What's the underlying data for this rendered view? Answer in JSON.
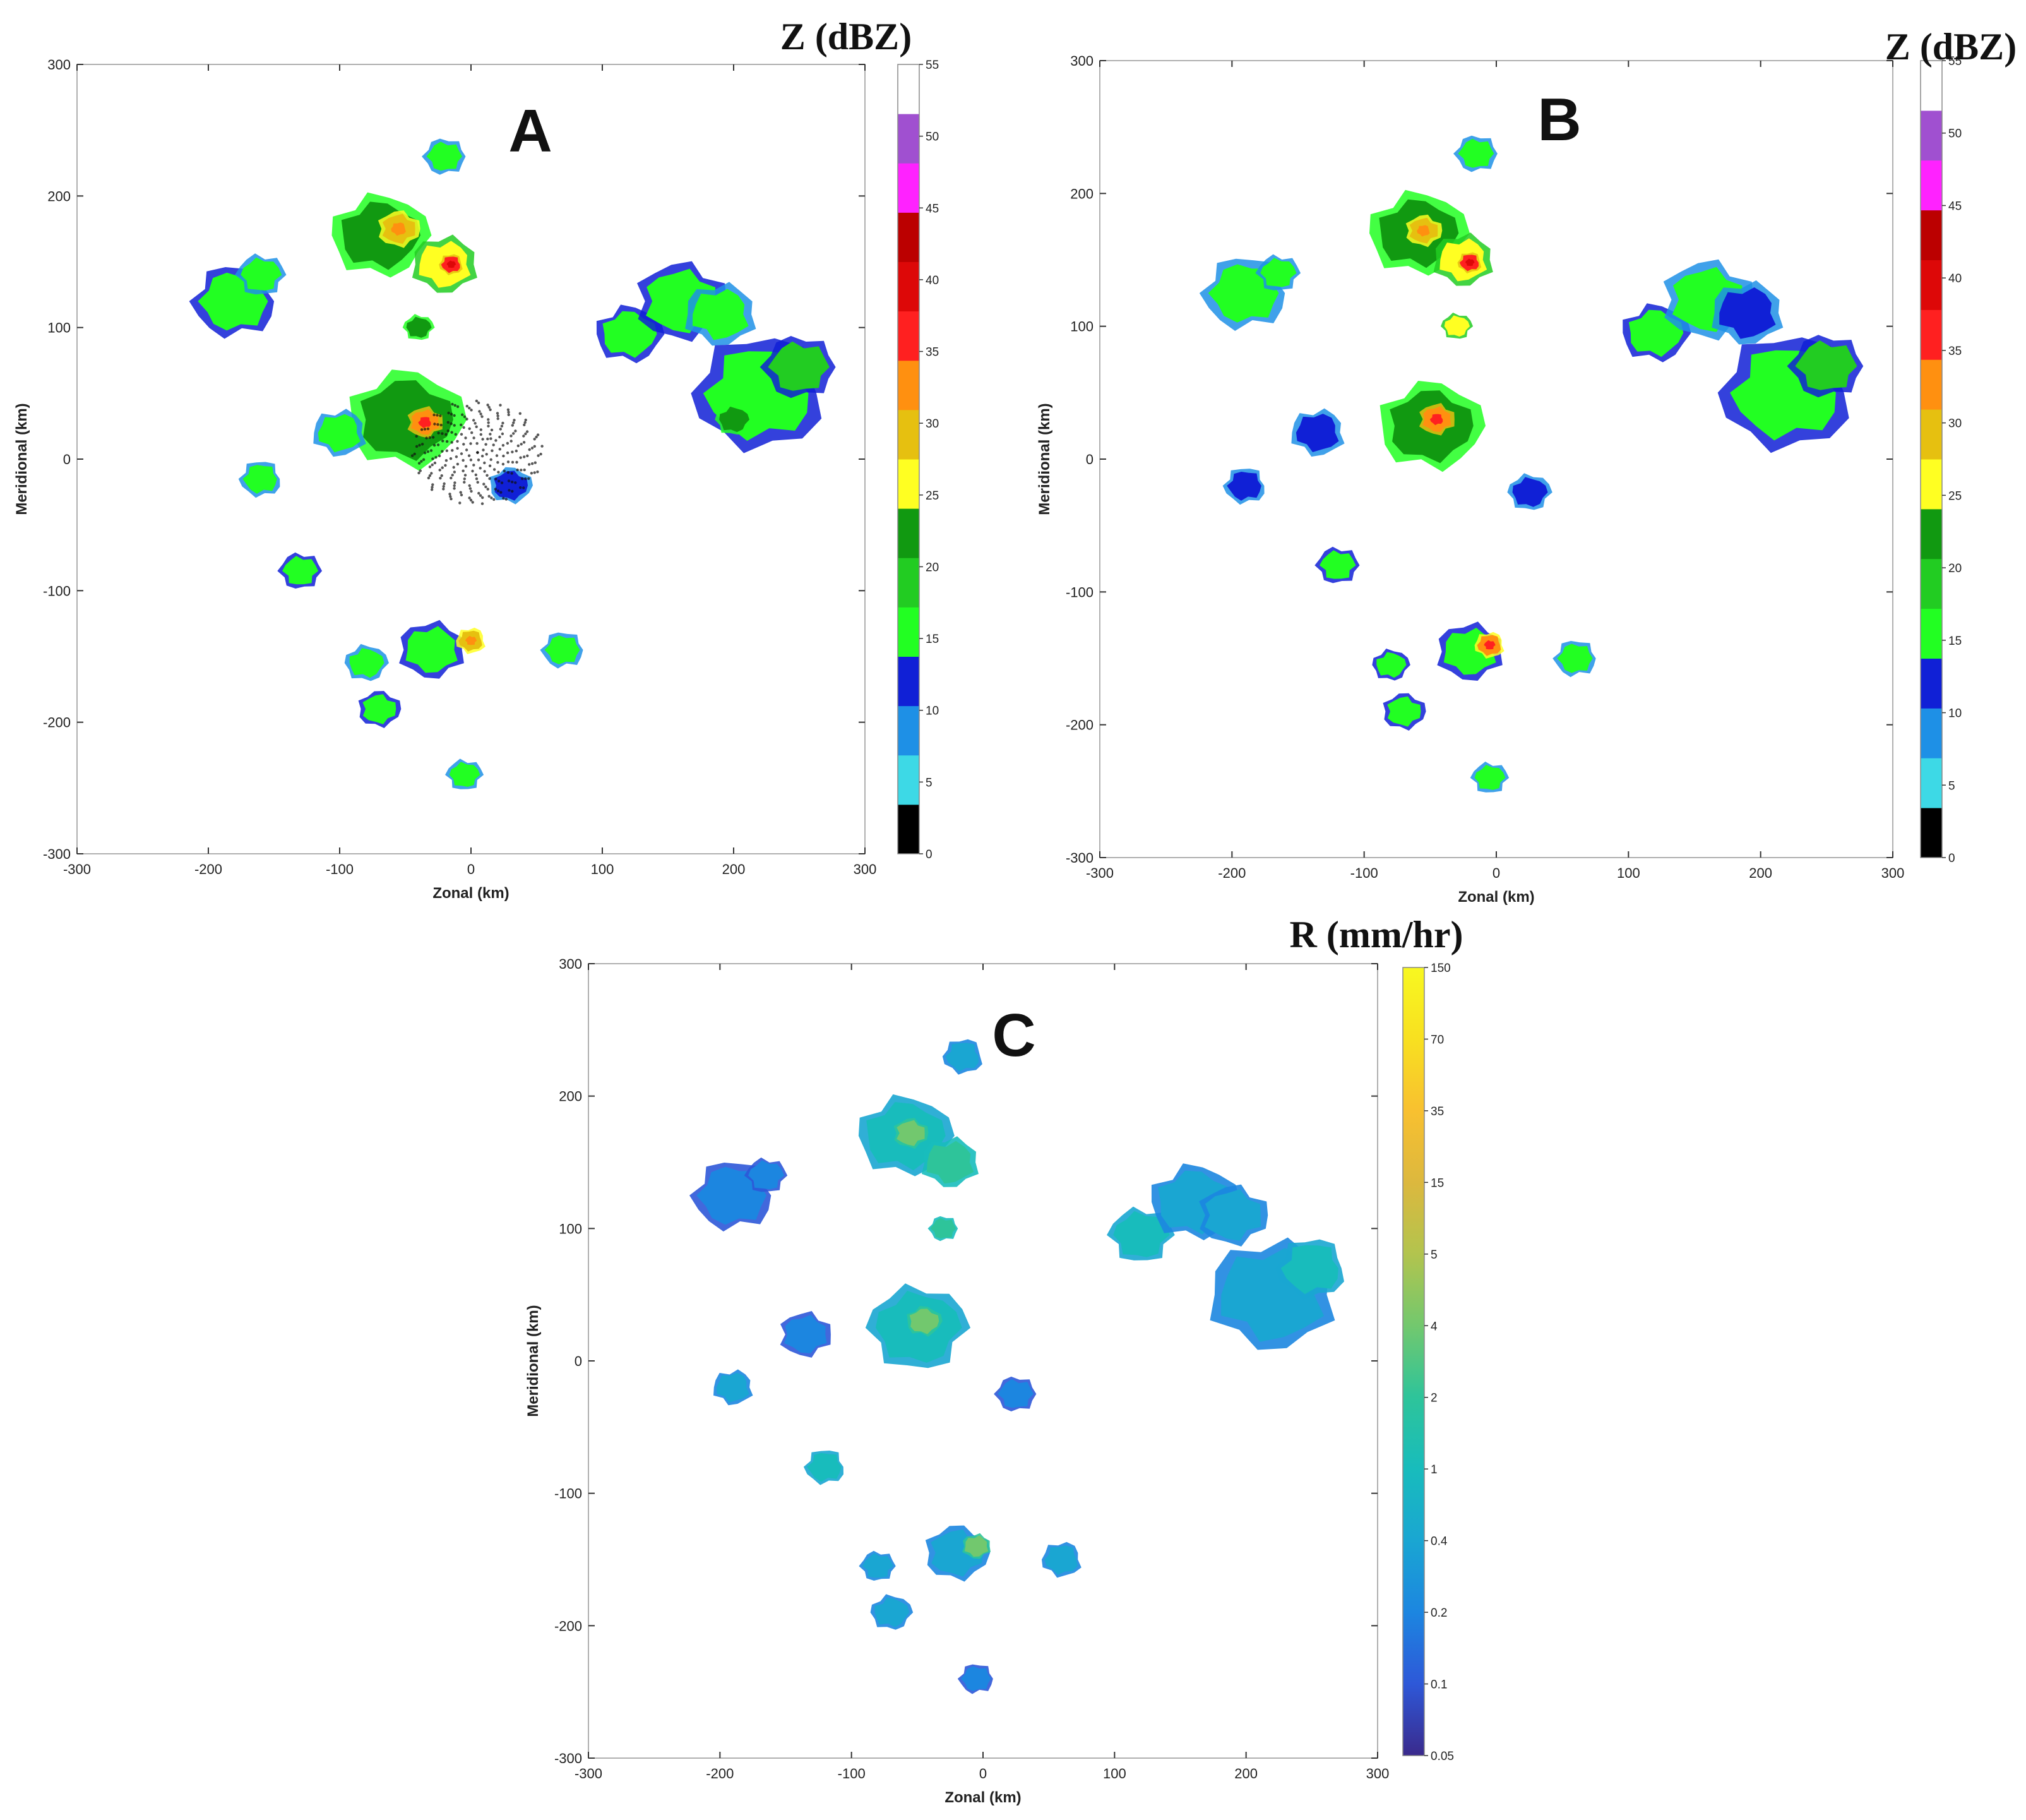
{
  "chart_data": [
    {
      "id": "A",
      "type": "heatmap",
      "panel_label": "A",
      "xlabel": "Zonal (km)",
      "ylabel": "Meridional (km)",
      "xlim": [
        -300,
        300
      ],
      "ylim": [
        -300,
        300
      ],
      "xticks": [
        -300,
        -200,
        -100,
        0,
        100,
        200,
        300
      ],
      "yticks": [
        -300,
        -200,
        -100,
        0,
        100,
        200,
        300
      ],
      "colorbar": {
        "title": "Z (dBZ)",
        "kind": "discrete",
        "ticks": [
          0,
          5,
          10,
          15,
          20,
          25,
          30,
          35,
          40,
          45,
          50,
          55
        ],
        "colors": [
          "#000000",
          "#3dd9e6",
          "#1e90e6",
          "#1020d6",
          "#22ff22",
          "#22cc22",
          "#119911",
          "#ffff22",
          "#e6c010",
          "#ff9010",
          "#ff2020",
          "#dd0808",
          "#bb0000",
          "#ff22ff",
          "#a050d0",
          "#ffffff"
        ]
      },
      "clutter_near_radar": true,
      "cells": [
        {
          "x": -180,
          "y": 120,
          "r": 28,
          "dbz": 17
        },
        {
          "x": -160,
          "y": 140,
          "r": 16,
          "dbz": 15
        },
        {
          "x": -70,
          "y": 170,
          "r": 32,
          "dbz": 24
        },
        {
          "x": -55,
          "y": 175,
          "r": 14,
          "dbz": 32
        },
        {
          "x": -20,
          "y": 148,
          "r": 22,
          "dbz": 26
        },
        {
          "x": -15,
          "y": 148,
          "r": 8,
          "dbz": 38
        },
        {
          "x": -20,
          "y": 230,
          "r": 14,
          "dbz": 16
        },
        {
          "x": -40,
          "y": 100,
          "r": 10,
          "dbz": 24
        },
        {
          "x": -50,
          "y": 30,
          "r": 38,
          "dbz": 22
        },
        {
          "x": -35,
          "y": 28,
          "r": 12,
          "dbz": 36
        },
        {
          "x": -100,
          "y": 20,
          "r": 18,
          "dbz": 15
        },
        {
          "x": -160,
          "y": -15,
          "r": 14,
          "dbz": 15
        },
        {
          "x": -130,
          "y": -85,
          "r": 14,
          "dbz": 18
        },
        {
          "x": -80,
          "y": -155,
          "r": 14,
          "dbz": 16
        },
        {
          "x": -70,
          "y": -190,
          "r": 14,
          "dbz": 18
        },
        {
          "x": -30,
          "y": -145,
          "r": 22,
          "dbz": 18
        },
        {
          "x": 0,
          "y": -138,
          "r": 10,
          "dbz": 32
        },
        {
          "x": 70,
          "y": -145,
          "r": 14,
          "dbz": 15
        },
        {
          "x": -5,
          "y": -240,
          "r": 12,
          "dbz": 15
        },
        {
          "x": 120,
          "y": 95,
          "r": 22,
          "dbz": 18
        },
        {
          "x": 160,
          "y": 120,
          "r": 30,
          "dbz": 17
        },
        {
          "x": 190,
          "y": 110,
          "r": 24,
          "dbz": 15
        },
        {
          "x": 220,
          "y": 50,
          "r": 44,
          "dbz": 17
        },
        {
          "x": 250,
          "y": 70,
          "r": 24,
          "dbz": 19
        },
        {
          "x": 200,
          "y": 30,
          "r": 12,
          "dbz": 24
        },
        {
          "x": 30,
          "y": -20,
          "r": 14,
          "dbz": 14
        }
      ]
    },
    {
      "id": "B",
      "type": "heatmap",
      "panel_label": "B",
      "xlabel": "Zonal (km)",
      "ylabel": "Meridional (km)",
      "xlim": [
        -300,
        300
      ],
      "ylim": [
        -300,
        300
      ],
      "xticks": [
        -300,
        -200,
        -100,
        0,
        100,
        200,
        300
      ],
      "yticks": [
        -300,
        -200,
        -100,
        0,
        100,
        200,
        300
      ],
      "colorbar": {
        "title": "Z (dBZ)",
        "kind": "discrete",
        "ticks": [
          0,
          5,
          10,
          15,
          20,
          25,
          30,
          35,
          40,
          45,
          50,
          55
        ],
        "colors": [
          "#000000",
          "#3dd9e6",
          "#1e90e6",
          "#1020d6",
          "#22ff22",
          "#22cc22",
          "#119911",
          "#ffff22",
          "#e6c010",
          "#ff9010",
          "#ff2020",
          "#dd0808",
          "#bb0000",
          "#ff22ff",
          "#a050d0",
          "#ffffff"
        ]
      },
      "clutter_near_radar": false,
      "cells": [
        {
          "x": -190,
          "y": 125,
          "r": 28,
          "dbz": 16
        },
        {
          "x": -165,
          "y": 140,
          "r": 14,
          "dbz": 15
        },
        {
          "x": -60,
          "y": 170,
          "r": 32,
          "dbz": 23
        },
        {
          "x": -55,
          "y": 172,
          "r": 12,
          "dbz": 32
        },
        {
          "x": -25,
          "y": 150,
          "r": 20,
          "dbz": 26
        },
        {
          "x": -20,
          "y": 148,
          "r": 8,
          "dbz": 38
        },
        {
          "x": -15,
          "y": 230,
          "r": 14,
          "dbz": 16
        },
        {
          "x": -30,
          "y": 100,
          "r": 10,
          "dbz": 26
        },
        {
          "x": -50,
          "y": 25,
          "r": 34,
          "dbz": 22
        },
        {
          "x": -45,
          "y": 30,
          "r": 12,
          "dbz": 36
        },
        {
          "x": -135,
          "y": 20,
          "r": 18,
          "dbz": 13
        },
        {
          "x": -190,
          "y": -20,
          "r": 14,
          "dbz": 14
        },
        {
          "x": -120,
          "y": -80,
          "r": 14,
          "dbz": 18
        },
        {
          "x": -80,
          "y": -155,
          "r": 12,
          "dbz": 17
        },
        {
          "x": -70,
          "y": -190,
          "r": 14,
          "dbz": 18
        },
        {
          "x": -20,
          "y": -145,
          "r": 22,
          "dbz": 18
        },
        {
          "x": -5,
          "y": -140,
          "r": 10,
          "dbz": 33
        },
        {
          "x": 60,
          "y": -150,
          "r": 14,
          "dbz": 15
        },
        {
          "x": -5,
          "y": -240,
          "r": 12,
          "dbz": 15
        },
        {
          "x": 120,
          "y": 95,
          "r": 22,
          "dbz": 18
        },
        {
          "x": 160,
          "y": 120,
          "r": 30,
          "dbz": 16
        },
        {
          "x": 190,
          "y": 110,
          "r": 24,
          "dbz": 14
        },
        {
          "x": 220,
          "y": 50,
          "r": 44,
          "dbz": 17
        },
        {
          "x": 250,
          "y": 70,
          "r": 24,
          "dbz": 19
        },
        {
          "x": 25,
          "y": -25,
          "r": 14,
          "dbz": 13
        }
      ]
    },
    {
      "id": "C",
      "type": "heatmap",
      "panel_label": "C",
      "xlabel": "Zonal (km)",
      "ylabel": "Meridional (km)",
      "xlim": [
        -300,
        300
      ],
      "ylim": [
        -300,
        300
      ],
      "xticks": [
        -300,
        -200,
        -100,
        0,
        100,
        200,
        300
      ],
      "yticks": [
        -300,
        -200,
        -100,
        0,
        100,
        200,
        300
      ],
      "colorbar": {
        "title": "R (mm/hr)",
        "kind": "continuous",
        "ticks": [
          "0.05",
          "0.1",
          "0.2",
          "0.4",
          "1",
          "2",
          "4",
          "5",
          "15",
          "35",
          "70",
          "150"
        ],
        "colors": [
          "#3a2a8c",
          "#2e58d8",
          "#1c86e0",
          "#1aa6d2",
          "#18bcbc",
          "#2ec49a",
          "#72c86e",
          "#b2c44e",
          "#dcb83e",
          "#f8c030",
          "#f8e020",
          "#f8f820"
        ]
      },
      "clutter_near_radar": false,
      "cells": [
        {
          "x": -190,
          "y": 125,
          "r": 28,
          "level": 2
        },
        {
          "x": -165,
          "y": 140,
          "r": 14,
          "level": 2
        },
        {
          "x": -60,
          "y": 170,
          "r": 32,
          "level": 4
        },
        {
          "x": -55,
          "y": 172,
          "r": 12,
          "level": 6
        },
        {
          "x": -25,
          "y": 150,
          "r": 20,
          "level": 5
        },
        {
          "x": -15,
          "y": 230,
          "r": 14,
          "level": 3
        },
        {
          "x": -30,
          "y": 100,
          "r": 10,
          "level": 5
        },
        {
          "x": -50,
          "y": 25,
          "r": 34,
          "level": 4
        },
        {
          "x": -45,
          "y": 30,
          "r": 12,
          "level": 6
        },
        {
          "x": -135,
          "y": 20,
          "r": 18,
          "level": 2
        },
        {
          "x": -190,
          "y": -20,
          "r": 14,
          "level": 3
        },
        {
          "x": -120,
          "y": -80,
          "r": 14,
          "level": 4
        },
        {
          "x": -80,
          "y": -155,
          "r": 12,
          "level": 3
        },
        {
          "x": -70,
          "y": -190,
          "r": 14,
          "level": 3
        },
        {
          "x": -20,
          "y": -145,
          "r": 22,
          "level": 3
        },
        {
          "x": -5,
          "y": -140,
          "r": 10,
          "level": 6
        },
        {
          "x": 60,
          "y": -150,
          "r": 14,
          "level": 3
        },
        {
          "x": -5,
          "y": -240,
          "r": 12,
          "level": 2
        },
        {
          "x": 120,
          "y": 95,
          "r": 22,
          "level": 4
        },
        {
          "x": 160,
          "y": 120,
          "r": 30,
          "level": 3
        },
        {
          "x": 190,
          "y": 110,
          "r": 24,
          "level": 3
        },
        {
          "x": 220,
          "y": 50,
          "r": 44,
          "level": 3
        },
        {
          "x": 250,
          "y": 70,
          "r": 24,
          "level": 4
        },
        {
          "x": 25,
          "y": -25,
          "r": 14,
          "level": 2
        }
      ]
    }
  ]
}
